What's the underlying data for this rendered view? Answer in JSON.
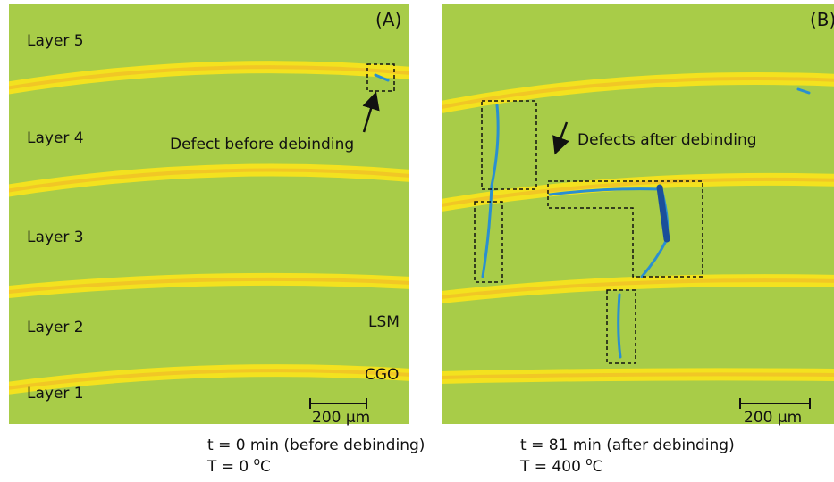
{
  "panels": [
    {
      "label": "(A)",
      "layers": [
        "Layer 5",
        "Layer 4",
        "Layer 3",
        "Layer 2",
        "Layer 1"
      ],
      "annotation": "Defect before debinding",
      "materials": [
        "LSM",
        "CGO"
      ],
      "scale_bar": "200 μm",
      "time": "t = 0 min (before debinding)",
      "temperature": [
        "T = 0 ",
        "o",
        "C"
      ]
    },
    {
      "label": "(B)",
      "annotation": "Defects after debinding",
      "scale_bar": "200 μm",
      "time": "t = 81 min (after debinding)",
      "temperature": [
        "T = 400 ",
        "o",
        "C"
      ]
    }
  ]
}
